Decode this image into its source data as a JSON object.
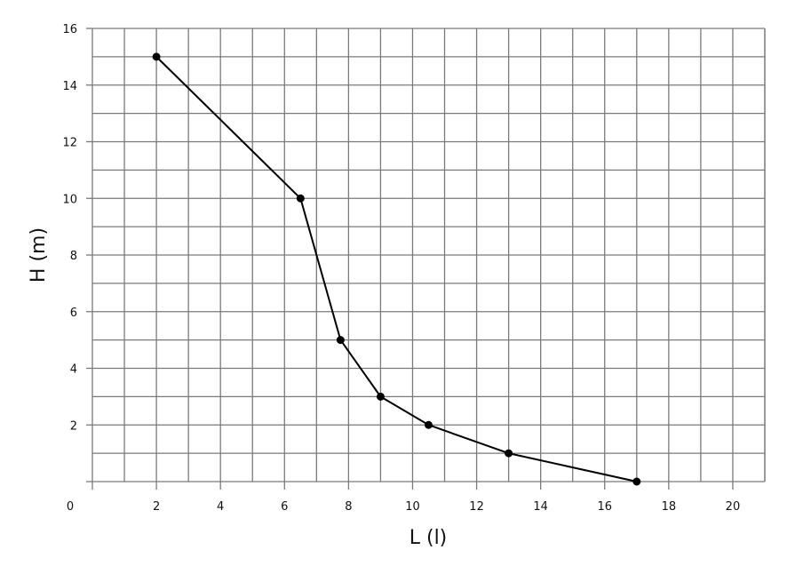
{
  "chart_data": {
    "type": "line",
    "title": "",
    "xlabel": "L (l)",
    "ylabel": "H (m)",
    "xlim": [
      0,
      21
    ],
    "ylim": [
      0,
      16
    ],
    "x_ticks": [
      0,
      2,
      4,
      6,
      8,
      10,
      12,
      14,
      16,
      18,
      20
    ],
    "y_ticks": [
      2,
      4,
      6,
      8,
      10,
      12,
      14,
      16
    ],
    "grid": true,
    "grid_step": 1,
    "series": [
      {
        "x": [
          2,
          6.5,
          7.75,
          9,
          10.5,
          13,
          17
        ],
        "y": [
          15,
          10,
          5,
          3,
          2,
          1,
          0
        ],
        "color": "#000000",
        "markers": true
      }
    ],
    "colors": {
      "grid": "#7a7a7a",
      "line": "#000000"
    }
  }
}
